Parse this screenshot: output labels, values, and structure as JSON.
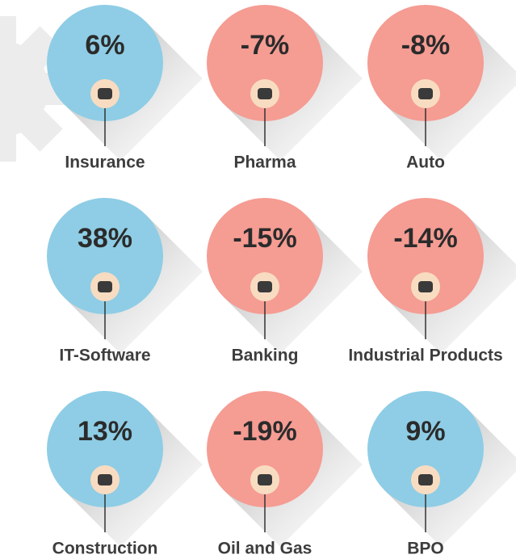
{
  "items": [
    {
      "value": "6%",
      "label": "Insurance",
      "color": "#8ecde5"
    },
    {
      "value": "-7%",
      "label": "Pharma",
      "color": "#f59c93"
    },
    {
      "value": "-8%",
      "label": "Auto",
      "color": "#f59c93"
    },
    {
      "value": "38%",
      "label": "IT-Software",
      "color": "#8ecde5"
    },
    {
      "value": "-15%",
      "label": "Banking",
      "color": "#f59c93"
    },
    {
      "value": "-14%",
      "label": "Industrial Products",
      "color": "#f59c93"
    },
    {
      "value": "13%",
      "label": "Construction",
      "color": "#8ecde5"
    },
    {
      "value": "-19%",
      "label": "Oil and Gas",
      "color": "#f59c93"
    },
    {
      "value": "9%",
      "label": "BPO",
      "color": "#8ecde5"
    }
  ]
}
